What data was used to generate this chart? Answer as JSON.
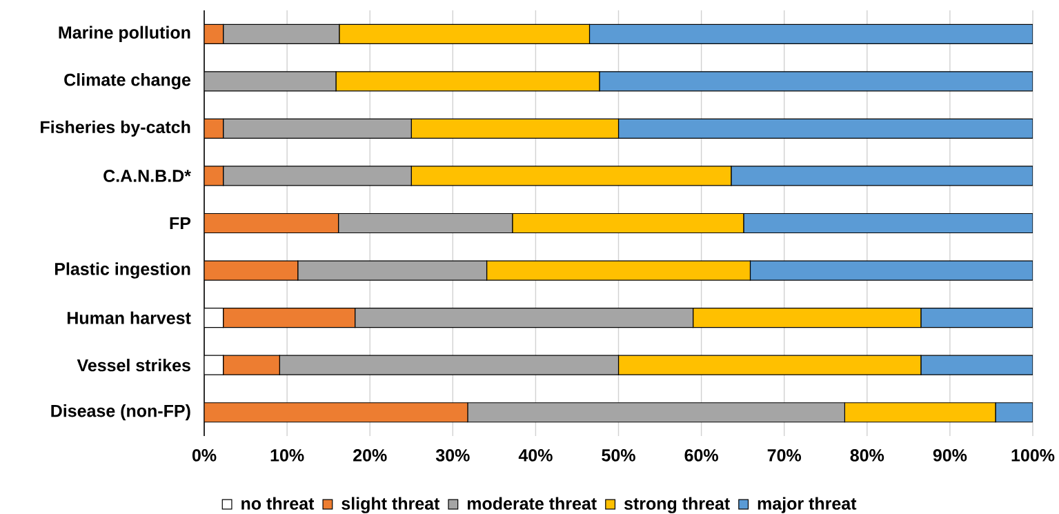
{
  "chart_data": {
    "type": "bar",
    "orientation": "horizontal",
    "stacked": true,
    "categories": [
      "Marine pollution",
      "Climate change",
      "Fisheries by-catch",
      "C.A.N.B.D*",
      "FP",
      "Plastic ingestion",
      "Human harvest",
      "Vessel strikes",
      "Disease (non-FP)"
    ],
    "series": [
      {
        "name": "no threat",
        "color": "#ffffff",
        "values": [
          0,
          0,
          0,
          0,
          0,
          0,
          2.3,
          2.3,
          0
        ]
      },
      {
        "name": "slight threat",
        "color": "#ed7d31",
        "values": [
          2.3,
          0,
          2.3,
          2.3,
          16.2,
          11.3,
          15.9,
          6.8,
          31.8
        ]
      },
      {
        "name": "moderate threat",
        "color": "#a5a5a5",
        "values": [
          14.0,
          15.9,
          22.7,
          22.7,
          21.0,
          22.8,
          40.8,
          40.9,
          45.5
        ]
      },
      {
        "name": "strong threat",
        "color": "#ffc000",
        "values": [
          30.2,
          31.8,
          25.0,
          38.6,
          27.9,
          31.8,
          27.5,
          36.5,
          18.2
        ]
      },
      {
        "name": "major threat",
        "color": "#5b9bd5",
        "values": [
          53.5,
          52.3,
          50.0,
          36.4,
          34.9,
          34.1,
          13.5,
          13.5,
          4.5
        ]
      }
    ],
    "xlim": [
      0,
      100
    ],
    "xticks": [
      {
        "value": 0,
        "label": "0%"
      },
      {
        "value": 10,
        "label": "10%"
      },
      {
        "value": 20,
        "label": "20%"
      },
      {
        "value": 30,
        "label": "30%"
      },
      {
        "value": 40,
        "label": "40%"
      },
      {
        "value": 50,
        "label": "50%"
      },
      {
        "value": 60,
        "label": "60%"
      },
      {
        "value": 70,
        "label": "70%"
      },
      {
        "value": 80,
        "label": "80%"
      },
      {
        "value": 90,
        "label": "90%"
      },
      {
        "value": 100,
        "label": "100%"
      }
    ],
    "grid": "x",
    "legend": "bottom"
  }
}
